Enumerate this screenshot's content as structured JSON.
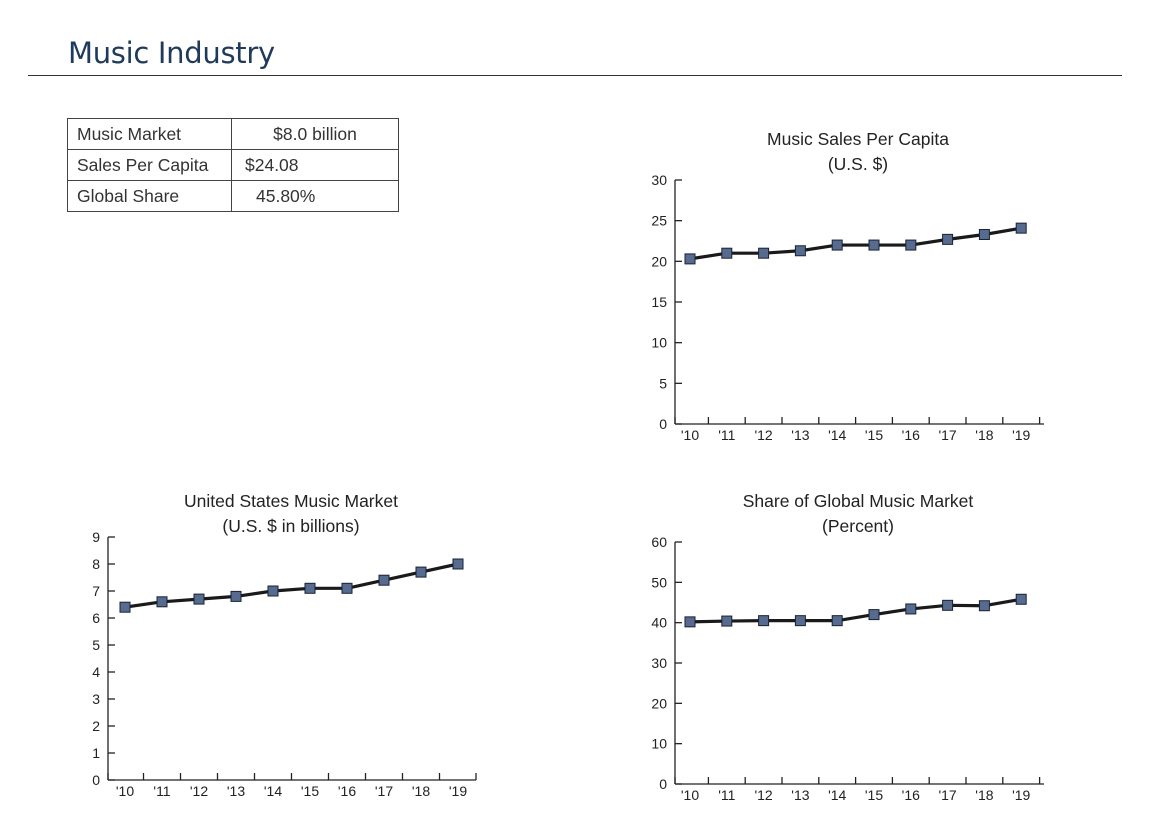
{
  "header": {
    "title": "Music Industry"
  },
  "summary_table": {
    "rows": [
      {
        "label": "Music Market",
        "value": "$8.0 billion"
      },
      {
        "label": "Sales Per Capita",
        "value": "$24.08"
      },
      {
        "label": "Global Share",
        "value": "45.80%"
      }
    ]
  },
  "colors": {
    "line": "#1a1a1a",
    "marker": "#566b8f",
    "title": "#1f3a5a"
  },
  "chart_data": [
    {
      "type": "line",
      "title": "Music Sales Per Capita",
      "subtitle": "(U.S. $)",
      "categories": [
        "'10",
        "'11",
        "'12",
        "'13",
        "'14",
        "'15",
        "'16",
        "'17",
        "'18",
        "'19"
      ],
      "values": [
        20.3,
        21.0,
        21.0,
        21.3,
        22.0,
        22.0,
        22.0,
        22.7,
        23.3,
        24.08
      ],
      "ylim": [
        0,
        30
      ],
      "yticks": [
        0,
        5,
        10,
        15,
        20,
        25,
        30
      ],
      "grid": false,
      "legend": "none"
    },
    {
      "type": "line",
      "title": "United States Music Market",
      "subtitle": "(U.S. $ in billions)",
      "categories": [
        "'10",
        "'11",
        "'12",
        "'13",
        "'14",
        "'15",
        "'16",
        "'17",
        "'18",
        "'19"
      ],
      "values": [
        6.4,
        6.6,
        6.7,
        6.8,
        7.0,
        7.1,
        7.1,
        7.4,
        7.7,
        8.0
      ],
      "ylim": [
        0,
        9
      ],
      "yticks": [
        0,
        1,
        2,
        3,
        4,
        5,
        6,
        7,
        8,
        9
      ],
      "grid": false,
      "legend": "none"
    },
    {
      "type": "line",
      "title": "Share of Global Music Market",
      "subtitle": "(Percent)",
      "categories": [
        "'10",
        "'11",
        "'12",
        "'13",
        "'14",
        "'15",
        "'16",
        "'17",
        "'18",
        "'19"
      ],
      "values": [
        40.2,
        40.4,
        40.5,
        40.5,
        40.5,
        42.0,
        43.4,
        44.3,
        44.2,
        45.8
      ],
      "ylim": [
        0,
        60
      ],
      "yticks": [
        0,
        10,
        20,
        30,
        40,
        50,
        60
      ],
      "grid": false,
      "legend": "none"
    }
  ]
}
